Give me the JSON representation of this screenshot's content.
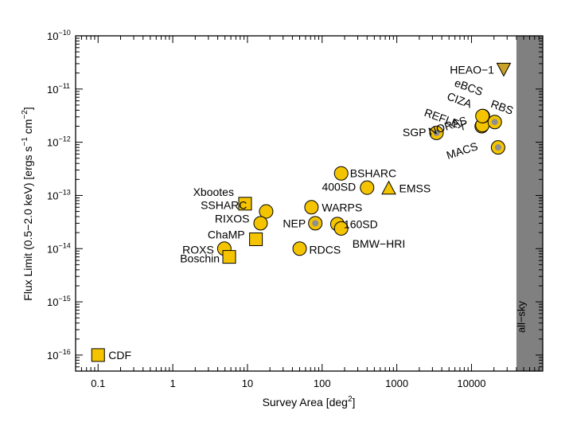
{
  "chart_data": {
    "type": "scatter",
    "title": "",
    "xlabel": "Survey Area [deg",
    "xlabel_sup": "2",
    "xlabel_end": "]",
    "ylabel": "Flux Limit (0.5−2.0 keV) [ergs s",
    "ylabel_sup1": "−1",
    "ylabel_mid": " cm",
    "ylabel_sup2": "−2",
    "ylabel_end": "]",
    "xscale": "log",
    "yscale": "log",
    "xlim": [
      0.05,
      90000
    ],
    "ylim": [
      5e-17,
      1e-10
    ],
    "grid": false,
    "all_sky": {
      "x_from": 40000,
      "label": "all−sky"
    },
    "x_ticks": [
      {
        "value": 0.1,
        "label": "0.1"
      },
      {
        "value": 1,
        "label": "1"
      },
      {
        "value": 10,
        "label": "10"
      },
      {
        "value": 100,
        "label": "100"
      },
      {
        "value": 1000,
        "label": "1000"
      },
      {
        "value": 10000,
        "label": "10000"
      }
    ],
    "y_ticks": [
      {
        "exp": -16,
        "base": "10",
        "sup": "−16"
      },
      {
        "exp": -15,
        "base": "10",
        "sup": "−15"
      },
      {
        "exp": -14,
        "base": "10",
        "sup": "−14"
      },
      {
        "exp": -13,
        "base": "10",
        "sup": "−13"
      },
      {
        "exp": -12,
        "base": "10",
        "sup": "−12"
      },
      {
        "exp": -11,
        "base": "10",
        "sup": "−11"
      },
      {
        "exp": -10,
        "base": "10",
        "sup": "−10"
      }
    ],
    "colors": {
      "marker": "#f5c400",
      "grey_dot": "#8f8f8f",
      "all_sky_band": "#808080",
      "heao": "#c9a227"
    },
    "points": [
      {
        "name": "CDF",
        "x": 0.1,
        "y": 1e-16,
        "marker": "square",
        "dot": false,
        "label": "CDF",
        "lpos": "right"
      },
      {
        "name": "Xbootes",
        "x": 9.3,
        "y": 7e-14,
        "marker": "square",
        "dot": false,
        "label": "Xbootes",
        "lpos": "left"
      },
      {
        "name": "SSHARC",
        "x": 17.8,
        "y": 5e-14,
        "marker": "circle",
        "dot": false,
        "label": "SSHARC",
        "lpos": "left"
      },
      {
        "name": "RIXOS",
        "x": 15,
        "y": 3e-14,
        "marker": "circle",
        "dot": false,
        "label": "RIXOS",
        "lpos": "left"
      },
      {
        "name": "ChaMP",
        "x": 13,
        "y": 1.5e-14,
        "marker": "square",
        "dot": false,
        "label": "ChaMP",
        "lpos": "left"
      },
      {
        "name": "ROXS",
        "x": 4.9,
        "y": 1e-14,
        "marker": "circle",
        "dot": false,
        "label": "ROXS",
        "lpos": "left"
      },
      {
        "name": "Boschin",
        "x": 5.7,
        "y": 7e-15,
        "marker": "square",
        "dot": false,
        "label": "Boschin",
        "lpos": "left"
      },
      {
        "name": "BSHARC",
        "x": 180,
        "y": 2.6e-13,
        "marker": "circle",
        "dot": false,
        "label": "BSHARC",
        "lpos": "right"
      },
      {
        "name": "400SD",
        "x": 400,
        "y": 1.4e-13,
        "marker": "circle",
        "dot": false,
        "label": "400SD",
        "lpos": "left"
      },
      {
        "name": "EMSS",
        "x": 780,
        "y": 1.35e-13,
        "marker": "triangle",
        "dot": false,
        "label": "EMSS",
        "lpos": "right"
      },
      {
        "name": "WARPS",
        "x": 72,
        "y": 6e-14,
        "marker": "circle",
        "dot": false,
        "label": "WARPS",
        "lpos": "right"
      },
      {
        "name": "NEP",
        "x": 81,
        "y": 3e-14,
        "marker": "circle",
        "dot": true,
        "label": "NEP",
        "lpos": "left"
      },
      {
        "name": "160SD",
        "x": 160,
        "y": 2.9e-14,
        "marker": "circle",
        "dot": false,
        "label": "160SD",
        "lpos": "right"
      },
      {
        "name": "BMW-HRI",
        "x": 180,
        "y": 2.4e-14,
        "marker": "circle",
        "dot": false,
        "label": "BMW−HRI",
        "lpos": "below-right"
      },
      {
        "name": "RDCS",
        "x": 50,
        "y": 1e-14,
        "marker": "circle",
        "dot": false,
        "label": "RDCS",
        "lpos": "right"
      },
      {
        "name": "SGP",
        "x": 3400,
        "y": 1.5e-12,
        "marker": "circle",
        "dot": true,
        "label": "SGP",
        "lpos": "left"
      },
      {
        "name": "NORAS",
        "x": 13700,
        "y": 2e-12,
        "marker": "circle",
        "dot": true,
        "label": "NORAS",
        "lpos": "rot"
      },
      {
        "name": "REFLEX",
        "x": 14000,
        "y": 2.1e-12,
        "marker": "circle",
        "dot": false,
        "label": "REFLEX",
        "lpos": "rot"
      },
      {
        "name": "CIZA",
        "x": 14200,
        "y": 3.1e-12,
        "marker": "circle",
        "dot": true,
        "label": "CIZA",
        "lpos": "rot"
      },
      {
        "name": "RBS",
        "x": 20500,
        "y": 2.4e-12,
        "marker": "circle",
        "dot": true,
        "label": "RBS",
        "lpos": "rot"
      },
      {
        "name": "MACS",
        "x": 22700,
        "y": 8e-13,
        "marker": "circle",
        "dot": true,
        "label": "MACS",
        "lpos": "rot"
      },
      {
        "name": "eBCS",
        "x": 14000,
        "y": 3.1e-12,
        "marker": "circle",
        "dot": false,
        "label": "eBCS",
        "lpos": "rot"
      },
      {
        "name": "HEAO-1",
        "x": 27000,
        "y": 2.4e-11,
        "marker": "triangle-down",
        "dot": false,
        "label": "HEAO−1",
        "lpos": "left"
      }
    ]
  }
}
